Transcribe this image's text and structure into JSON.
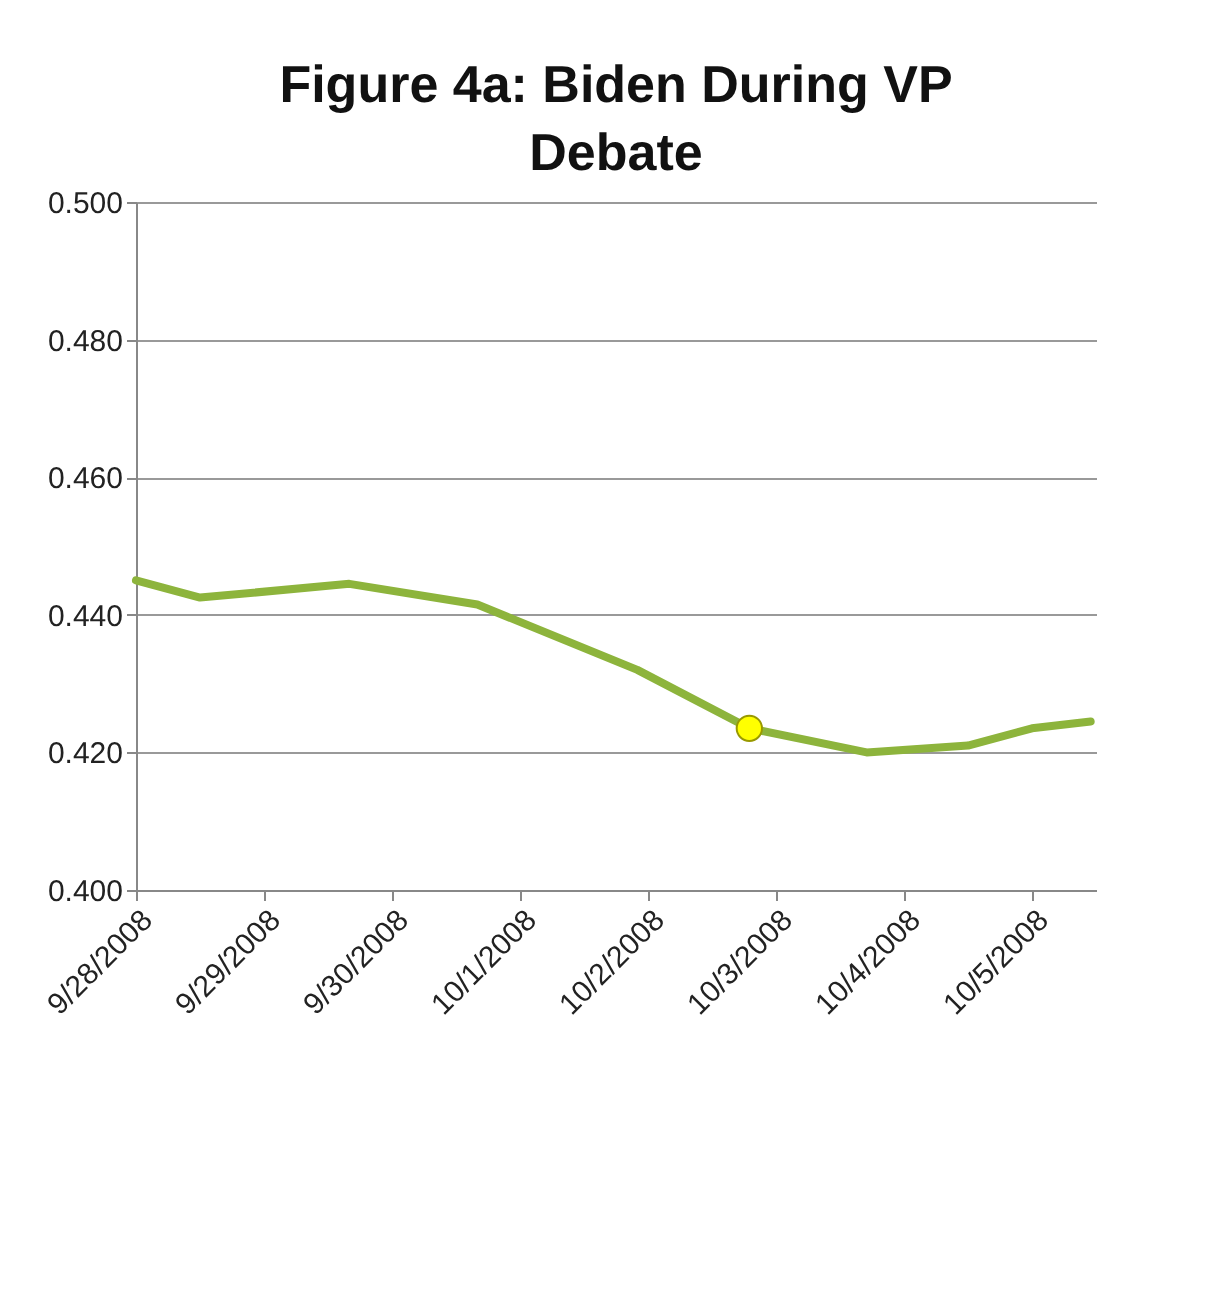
{
  "chart_data": {
    "type": "line",
    "title": "Figure 4a: Biden During VP Debate",
    "series": [
      {
        "color": "#8db43c",
        "x": [
          "2008-09-28T00:00",
          "2008-09-28T12:00",
          "2008-09-29T16:00",
          "2008-09-30T16:00",
          "2008-10-01T22:00",
          "2008-10-02T19:00",
          "2008-10-03T17:00",
          "2008-10-04T12:00",
          "2008-10-05T00:00",
          "2008-10-05T11:00"
        ],
        "values": [
          0.445,
          0.4425,
          0.4445,
          0.4415,
          0.432,
          0.4235,
          0.42,
          0.421,
          0.4235,
          0.4245
        ]
      },
      {
        "type": "scatter",
        "color": "#ffff00",
        "x": [
          "2008-10-02T19:00"
        ],
        "values": [
          0.4235
        ]
      }
    ],
    "xlim": [
      "2008-09-28T00:00",
      "2008-10-05T12:00"
    ],
    "xticks": [
      {
        "value": "2008-09-28",
        "label": "9/28/2008"
      },
      {
        "value": "2008-09-29",
        "label": "9/29/2008"
      },
      {
        "value": "2008-09-30",
        "label": "9/30/2008"
      },
      {
        "value": "2008-10-01",
        "label": "10/1/2008"
      },
      {
        "value": "2008-10-02",
        "label": "10/2/2008"
      },
      {
        "value": "2008-10-03",
        "label": "10/3/2008"
      },
      {
        "value": "2008-10-04",
        "label": "10/4/2008"
      },
      {
        "value": "2008-10-05",
        "label": "10/5/2008"
      }
    ],
    "ylim": [
      0.4,
      0.5
    ],
    "yticks": [
      {
        "value": 0.4,
        "label": "0.400"
      },
      {
        "value": 0.42,
        "label": "0.420"
      },
      {
        "value": 0.44,
        "label": "0.440"
      },
      {
        "value": 0.46,
        "label": "0.460"
      },
      {
        "value": 0.48,
        "label": "0.480"
      },
      {
        "value": 0.5,
        "label": "0.500"
      }
    ],
    "grid": "y"
  }
}
